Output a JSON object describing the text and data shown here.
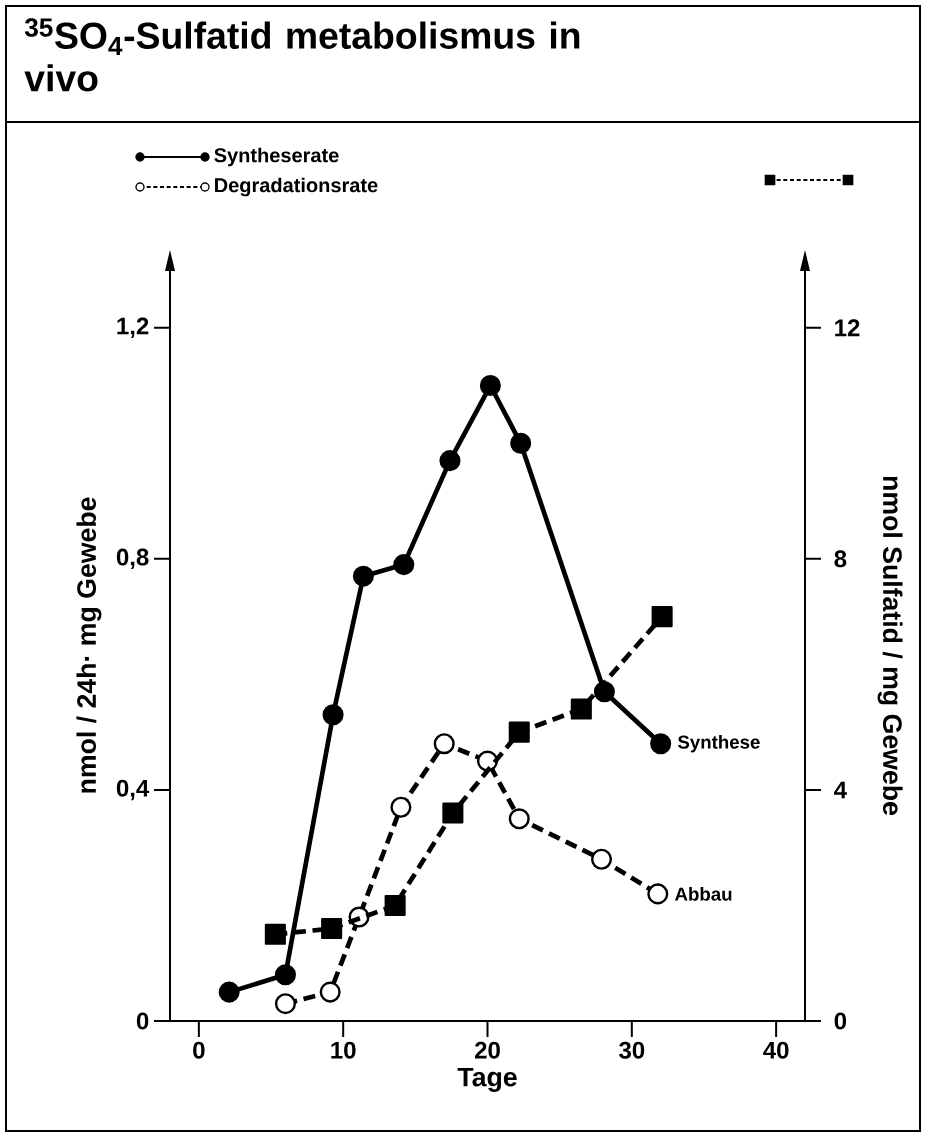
{
  "chart_data": {
    "type": "line",
    "title": "$^{35}$SO$_{4}$-Sulfatid  metabolismus in vivo",
    "xlabel": "Tage",
    "ylabel": "nmol / 24h· mg Gewebe",
    "y2label": "nmol  Sulfatid / mg Gewebe",
    "xlim": [
      -2,
      42
    ],
    "xticks": [
      0,
      10,
      20,
      30,
      40
    ],
    "ylim": [
      0,
      1.3
    ],
    "yticks": [
      0,
      {
        "value": 0.4,
        "label": "0,4"
      },
      {
        "value": 0.8,
        "label": "0,8"
      },
      {
        "value": 1.2,
        "label": "1,2"
      }
    ],
    "y2lim": [
      0,
      13
    ],
    "y2ticks": [
      0,
      4,
      8,
      12
    ],
    "legend": "top",
    "grid": false,
    "series": [
      {
        "name": "Syntheserate",
        "color": "#000000",
        "marker": "circle",
        "line_style": "solid",
        "x": [
          2.1,
          6.0,
          9.3,
          11.4,
          14.2,
          17.4,
          20.2,
          22.3,
          28.1,
          32.0
        ],
        "values": [
          0.05,
          0.08,
          0.53,
          0.77,
          0.79,
          0.97,
          1.1,
          1.0,
          0.57,
          0.48
        ]
      },
      {
        "name": "Degradationsrate",
        "color": "#000000",
        "marker": "circle",
        "line_style": "dashed",
        "x": [
          6.0,
          9.1,
          11.1,
          14.0,
          17.0,
          20.0,
          22.2,
          27.9,
          31.8
        ],
        "values": [
          0.03,
          0.05,
          0.18,
          0.37,
          0.48,
          0.45,
          0.35,
          0.28,
          0.22
        ]
      },
      {
        "color": "#000000",
        "marker": "square",
        "line_style": "dashed",
        "axis": "y2",
        "x": [
          5.3,
          9.2,
          13.6,
          17.6,
          22.2,
          26.5,
          32.1
        ],
        "values": [
          1.5,
          1.6,
          2.0,
          3.6,
          5.0,
          5.4,
          7.0
        ]
      }
    ],
    "annotations": [
      {
        "text": "Synthese",
        "x": 32.0,
        "y": 0.48
      },
      {
        "text": "Abbau",
        "x": 31.8,
        "y": 0.22
      }
    ]
  }
}
